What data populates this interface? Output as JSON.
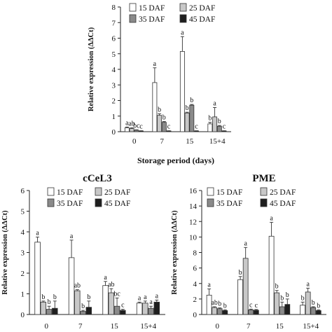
{
  "legend_labels": [
    "15 DAF",
    "25 DAF",
    "35 DAF",
    "45 DAF"
  ],
  "colors": {
    "s15": "#ffffff",
    "s25": "#c8c8c8",
    "s35": "#8a8a8a",
    "s45": "#1e1e1e",
    "edge": "#333333"
  },
  "chart_data": [
    {
      "type": "bar",
      "title": "",
      "ylabel": "Relative expression (ΔΔCt)",
      "xlabel": "Storage period (days)",
      "categories": [
        "0",
        "7",
        "15",
        "15+4"
      ],
      "ylim": [
        0,
        8
      ],
      "yticks": [
        "0",
        "1",
        "2",
        "3",
        "4",
        "5",
        "6",
        "7",
        "8"
      ],
      "legend_position": "top-center",
      "series": [
        {
          "name": "15 DAF",
          "values": [
            0.25,
            3.15,
            5.15,
            0.5
          ],
          "errors": [
            0.05,
            0.95,
            0.95,
            0.1
          ],
          "letters": [
            "a",
            "a",
            "a",
            "b"
          ]
        },
        {
          "name": "25 DAF",
          "values": [
            0.2,
            1.05,
            1.2,
            0.95
          ],
          "errors": [
            0.05,
            0.1,
            0.05,
            0.6
          ],
          "letters": [
            "ab",
            "b",
            "b",
            "a"
          ]
        },
        {
          "name": "35 DAF",
          "values": [
            0.1,
            0.6,
            1.7,
            0.35
          ],
          "errors": [
            0.02,
            0.05,
            0.05,
            0.05
          ],
          "letters": [
            "bc",
            "b",
            "b",
            "b"
          ]
        },
        {
          "name": "45 DAF",
          "values": [
            0.05,
            0.05,
            0.05,
            0.05
          ],
          "errors": [
            0.01,
            0.01,
            0.01,
            0.01
          ],
          "letters": [
            "c",
            "c",
            "c",
            "c"
          ]
        }
      ]
    },
    {
      "type": "bar",
      "title": "cCeL3",
      "ylabel": "Relative expression (ΔΔCt)",
      "xlabel": "",
      "categories": [
        "0",
        "7",
        "15",
        "15+4"
      ],
      "ylim": [
        0,
        6
      ],
      "yticks": [
        "0",
        "1",
        "2",
        "3",
        "4",
        "5",
        "6"
      ],
      "legend_position": "top-center",
      "series": [
        {
          "name": "15 DAF",
          "values": [
            3.5,
            2.75,
            1.4,
            0.55
          ],
          "errors": [
            0.25,
            0.85,
            0.2,
            0.05
          ],
          "letters": [
            "a",
            "a",
            "a",
            "a"
          ]
        },
        {
          "name": "25 DAF",
          "values": [
            0.6,
            1.15,
            1.05,
            0.55
          ],
          "errors": [
            0.05,
            0.05,
            0.2,
            0.1
          ],
          "letters": [
            "b",
            "ab",
            "ab",
            "a"
          ]
        },
        {
          "name": "35 DAF",
          "values": [
            0.25,
            0.15,
            0.4,
            0.3
          ],
          "errors": [
            0.15,
            0.05,
            0.4,
            0.1
          ],
          "letters": [
            "b",
            "b",
            "bc",
            "a"
          ]
        },
        {
          "name": "45 DAF",
          "values": [
            0.3,
            0.35,
            0.2,
            0.6
          ],
          "errors": [
            0.35,
            0.3,
            0.05,
            0.1
          ],
          "letters": [
            "b",
            "b",
            "c",
            "a"
          ]
        }
      ]
    },
    {
      "type": "bar",
      "title": "PME",
      "ylabel": "Relative expression (ΔΔCt)",
      "xlabel": "",
      "categories": [
        "0",
        "7",
        "15",
        "15+4"
      ],
      "ylim": [
        0,
        16
      ],
      "yticks": [
        "0",
        "2",
        "4",
        "6",
        "8",
        "10",
        "12",
        "14",
        "16"
      ],
      "legend_position": "top-center",
      "series": [
        {
          "name": "15 DAF",
          "values": [
            2.5,
            4.5,
            10.1,
            1.2
          ],
          "errors": [
            0.8,
            0.4,
            1.8,
            0.4
          ],
          "letters": [
            "a",
            "b",
            "a",
            "b"
          ]
        },
        {
          "name": "25 DAF",
          "values": [
            0.9,
            7.25,
            2.8,
            2.9
          ],
          "errors": [
            0.1,
            1.4,
            0.3,
            0.5
          ],
          "letters": [
            "ab",
            "a",
            "b",
            "a"
          ]
        },
        {
          "name": "35 DAF",
          "values": [
            0.75,
            0.6,
            1.0,
            0.9
          ],
          "errors": [
            0.1,
            0.1,
            0.6,
            0.1
          ],
          "letters": [
            "b",
            "c",
            "b",
            "b"
          ]
        },
        {
          "name": "45 DAF",
          "values": [
            0.5,
            0.55,
            1.3,
            0.5
          ],
          "errors": [
            0.1,
            0.1,
            0.7,
            0.1
          ],
          "letters": [
            "b",
            "c",
            "b",
            "b"
          ]
        }
      ]
    }
  ]
}
